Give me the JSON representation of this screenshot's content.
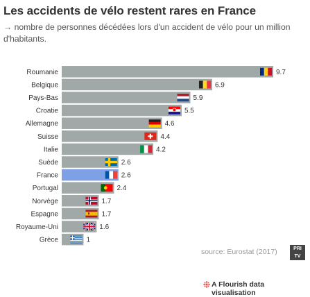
{
  "title": "Les accidents de vélo restent rares en France",
  "subtitle": "→ nombre de personnes décédées lors d'un accident de vélo pour un million d'habitants.",
  "source": "source: Eurostat (2017)",
  "logo_text": "PRI TV",
  "credit": "A Flourish data visualisation",
  "colors": {
    "bar": "#a0a8a8",
    "highlight": "#7ea1e6",
    "label": "#333333",
    "credit_icon": "#e8504f"
  },
  "chart_data": {
    "type": "bar",
    "orientation": "horizontal",
    "categories": [
      "Roumanie",
      "Belgique",
      "Pays-Bas",
      "Croatie",
      "Allemagne",
      "Suisse",
      "Italie",
      "Suède",
      "France",
      "Portugal",
      "Norvège",
      "Espagne",
      "Royaume-Uni",
      "Grèce"
    ],
    "values": [
      9.7,
      6.9,
      5.9,
      5.5,
      4.6,
      4.4,
      4.2,
      2.6,
      2.6,
      2.4,
      1.7,
      1.7,
      1.6,
      1
    ],
    "value_labels": [
      "9.7",
      "6.9",
      "5.9",
      "5.5",
      "4.6",
      "4.4",
      "4.2",
      "2.6",
      "2.6",
      "2.4",
      "1.7",
      "1.7",
      "1.6",
      "1"
    ],
    "flags": [
      "romania-flag",
      "belgium-flag",
      "netherlands-flag",
      "croatia-flag",
      "germany-flag",
      "switzerland-flag",
      "italy-flag",
      "sweden-flag",
      "france-flag",
      "portugal-flag",
      "norway-flag",
      "spain-flag",
      "uk-flag",
      "greece-flag"
    ],
    "highlight": "France",
    "xlim": [
      0,
      9.7
    ],
    "grid": false,
    "legend": "none"
  }
}
